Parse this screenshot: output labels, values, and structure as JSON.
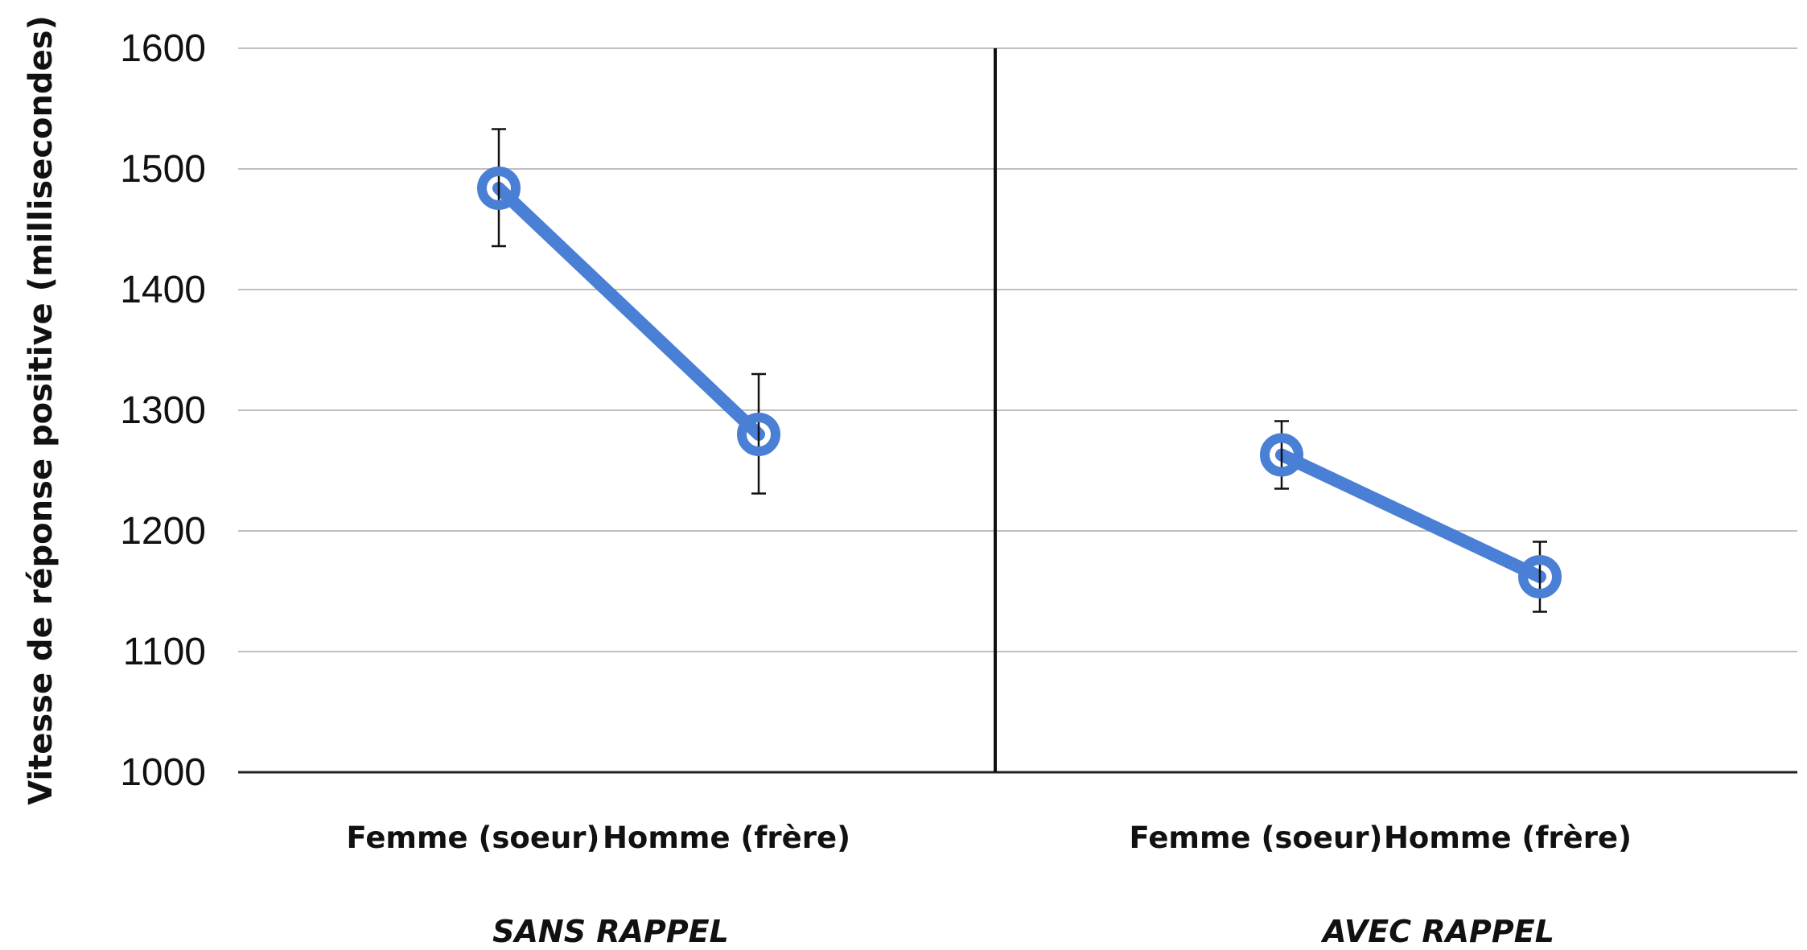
{
  "chart_data": {
    "type": "line",
    "ylabel": "Vitesse de réponse positive (millisecondes)",
    "xlabel": "",
    "ylim": [
      1000,
      1600
    ],
    "yticks": [
      1000,
      1100,
      1200,
      1300,
      1400,
      1500,
      1600
    ],
    "grid": true,
    "legend": "none",
    "line_color": "#4a7fd6",
    "groups": [
      {
        "label": "SANS RAPPEL",
        "categories": [
          "Femme (soeur)",
          "Homme (frère)"
        ],
        "values": [
          1484,
          1280
        ],
        "error_low": [
          1436,
          1231
        ],
        "error_high": [
          1533,
          1330
        ]
      },
      {
        "label": "AVEC RAPPEL",
        "categories": [
          "Femme (soeur)",
          "Homme (frère)"
        ],
        "values": [
          1263,
          1162
        ],
        "error_low": [
          1235,
          1133
        ],
        "error_high": [
          1291,
          1191
        ]
      }
    ]
  }
}
